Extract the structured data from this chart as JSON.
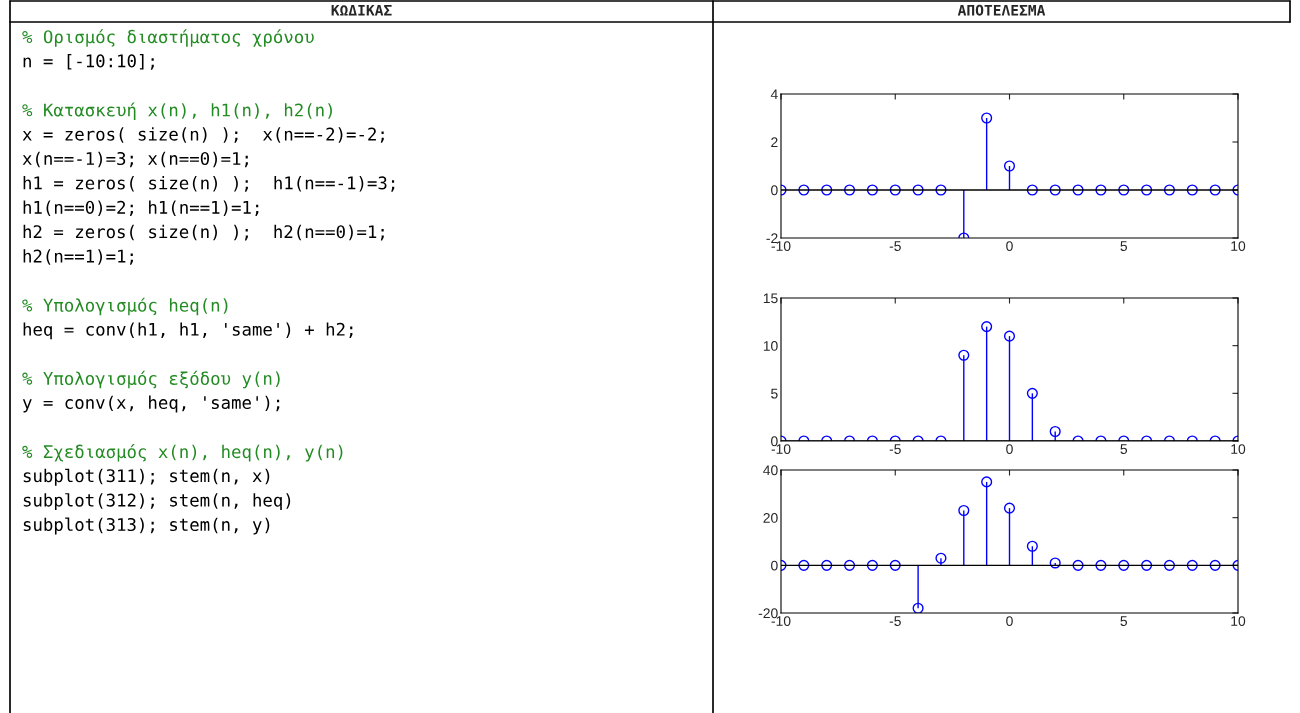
{
  "chart_data": [
    {
      "type": "other",
      "title": "ΚΩΔΙΚΑΣ",
      "colors": [
        "#228b22",
        "#000000"
      ],
      "annotations": [
        "% Ορισμός διαστήματος χρόνου\nn = [-10:10];",
        "% Κατασκευή x(n), h1(n), h2(n)\nx = zeros( size(n) );  x(n==-2)=-2;\nx(n==-1)=3; x(n==0)=1;\nh1 = zeros( size(n) );  h1(n==-1)=3;\nh1(n==0)=2; h1(n==1)=1;\nh2 = zeros( size(n) );  h2(n==0)=1;\nh2(n==1)=1;",
        "% Υπολογισμός heq(n)\nheq = conv(h1, h1, 'same') + h2;",
        "% Υπολογισμός εξόδου y(n)\ny = conv(x, heq, 'same');",
        "% Σχεδιασμός x(n), heq(n), y(n)\nsubplot(311); stem(n, x)\nsubplot(312); stem(n, heq)\nsubplot(313); stem(n, y)"
      ]
    },
    {
      "type": "lollipop",
      "title": "ΑΠΟΤΕΛΕΣΜΑ",
      "color": "#0000ff",
      "marker": "circle",
      "x": [
        -10,
        -9,
        -8,
        -7,
        -6,
        -5,
        -4,
        -3,
        -2,
        -1,
        0,
        1,
        2,
        3,
        4,
        5,
        6,
        7,
        8,
        9,
        10
      ],
      "values": [
        0,
        0,
        0,
        0,
        0,
        0,
        0,
        0,
        -2,
        3,
        1,
        0,
        0,
        0,
        0,
        0,
        0,
        0,
        0,
        0,
        0
      ],
      "xlim": [
        -10,
        10
      ],
      "ylim": [
        -2,
        4
      ],
      "xticks": [
        -10,
        -5,
        0,
        5,
        10
      ],
      "yticks": [
        -2,
        0,
        2,
        4
      ]
    },
    {
      "type": "lollipop",
      "color": "#0000ff",
      "marker": "circle",
      "x": [
        -10,
        -9,
        -8,
        -7,
        -6,
        -5,
        -4,
        -3,
        -2,
        -1,
        0,
        1,
        2,
        3,
        4,
        5,
        6,
        7,
        8,
        9,
        10
      ],
      "values": [
        0,
        0,
        0,
        0,
        0,
        0,
        0,
        0,
        9,
        12,
        11,
        5,
        1,
        0,
        0,
        0,
        0,
        0,
        0,
        0,
        0
      ],
      "xlim": [
        -10,
        10
      ],
      "ylim": [
        0,
        15
      ],
      "xticks": [
        -10,
        -5,
        0,
        5,
        10
      ],
      "yticks": [
        0,
        5,
        10,
        15
      ]
    },
    {
      "type": "lollipop",
      "color": "#0000ff",
      "marker": "circle",
      "x": [
        -10,
        -9,
        -8,
        -7,
        -6,
        -5,
        -4,
        -3,
        -2,
        -1,
        0,
        1,
        2,
        3,
        4,
        5,
        6,
        7,
        8,
        9,
        10
      ],
      "values": [
        0,
        0,
        0,
        0,
        0,
        0,
        -18,
        3,
        23,
        35,
        24,
        8,
        1,
        0,
        0,
        0,
        0,
        0,
        0,
        0,
        0
      ],
      "xlim": [
        -10,
        10
      ],
      "ylim": [
        -20,
        40
      ],
      "xticks": [
        -10,
        -5,
        0,
        5,
        10
      ],
      "yticks": [
        -20,
        0,
        20,
        40
      ]
    }
  ]
}
